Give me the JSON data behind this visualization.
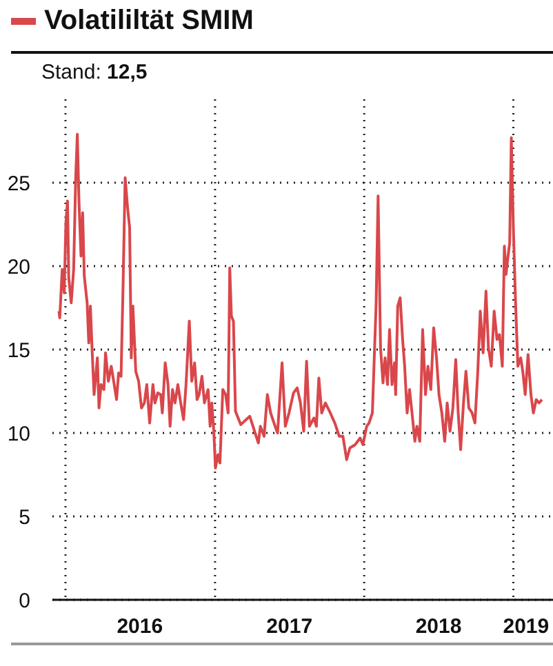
{
  "chart_data": {
    "type": "line",
    "title": "Volatililtät SMIM",
    "subtitle": "Stand: 12,5",
    "series": [
      {
        "color": "#d9474b",
        "x": [
          "2015-12-16",
          "2015-12-18",
          "2015-12-24",
          "2015-12-29",
          "2016-01-02",
          "2016-01-06",
          "2016-01-09",
          "2016-01-15",
          "2016-01-21",
          "2016-01-26",
          "2016-01-30",
          "2016-02-03",
          "2016-02-08",
          "2016-02-12",
          "2016-02-16",
          "2016-02-23",
          "2016-02-27",
          "2016-03-02",
          "2016-03-06",
          "2016-03-11",
          "2016-03-19",
          "2016-03-23",
          "2016-03-28",
          "2016-04-04",
          "2016-04-08",
          "2016-04-15",
          "2016-04-22",
          "2016-04-28",
          "2016-05-05",
          "2016-05-10",
          "2016-05-16",
          "2016-05-21",
          "2016-05-26",
          "2016-06-01",
          "2016-06-06",
          "2016-06-10",
          "2016-06-14",
          "2016-06-21",
          "2016-06-28",
          "2016-07-05",
          "2016-07-12",
          "2016-07-18",
          "2016-07-25",
          "2016-08-02",
          "2016-08-07",
          "2016-08-14",
          "2016-08-21",
          "2016-08-25",
          "2016-09-01",
          "2016-09-08",
          "2016-09-13",
          "2016-09-19",
          "2016-09-25",
          "2016-10-02",
          "2016-10-09",
          "2016-10-16",
          "2016-10-22",
          "2016-10-30",
          "2016-11-05",
          "2016-11-12",
          "2016-11-18",
          "2016-11-23",
          "2016-11-30",
          "2016-12-06",
          "2016-12-15",
          "2016-12-20",
          "2016-12-24",
          "2016-12-29",
          "2017-01-02",
          "2017-01-08",
          "2017-01-13",
          "2017-01-20",
          "2017-01-27",
          "2017-02-02",
          "2017-02-06",
          "2017-02-10",
          "2017-02-15",
          "2017-02-20",
          "2017-03-05",
          "2017-03-27",
          "2017-04-17",
          "2017-04-22",
          "2017-05-01",
          "2017-05-09",
          "2017-05-17",
          "2017-05-28",
          "2017-06-03",
          "2017-06-14",
          "2017-06-22",
          "2017-07-01",
          "2017-07-12",
          "2017-07-21",
          "2017-07-29",
          "2017-08-06",
          "2017-08-13",
          "2017-08-20",
          "2017-08-31",
          "2017-09-06",
          "2017-09-12",
          "2017-09-19",
          "2017-09-28",
          "2017-10-10",
          "2017-10-21",
          "2017-11-01",
          "2017-11-10",
          "2017-11-19",
          "2017-11-27",
          "2017-12-10",
          "2017-12-22",
          "2017-12-29",
          "2018-01-07",
          "2018-01-13",
          "2018-01-21",
          "2018-01-30",
          "2018-02-04",
          "2018-02-10",
          "2018-02-16",
          "2018-02-21",
          "2018-02-27",
          "2018-03-04",
          "2018-03-10",
          "2018-03-16",
          "2018-03-19",
          "2018-03-24",
          "2018-03-30",
          "2018-04-05",
          "2018-04-10",
          "2018-04-16",
          "2018-04-22",
          "2018-04-28",
          "2018-05-05",
          "2018-05-10",
          "2018-05-17",
          "2018-05-24",
          "2018-05-31",
          "2018-06-06",
          "2018-06-13",
          "2018-06-20",
          "2018-06-27",
          "2018-07-03",
          "2018-07-10",
          "2018-07-17",
          "2018-07-23",
          "2018-07-30",
          "2018-08-06",
          "2018-08-13",
          "2018-08-19",
          "2018-08-25",
          "2018-09-01",
          "2018-09-07",
          "2018-09-14",
          "2018-09-22",
          "2018-09-29",
          "2018-10-06",
          "2018-10-12",
          "2018-10-19",
          "2018-10-26",
          "2018-11-01",
          "2018-11-08",
          "2018-11-15",
          "2018-11-22",
          "2018-11-28",
          "2018-12-05",
          "2018-12-10",
          "2018-12-14",
          "2018-12-19",
          "2018-12-23",
          "2018-12-27",
          "2019-01-01",
          "2019-01-06",
          "2019-01-12",
          "2019-01-19",
          "2019-01-24",
          "2019-01-30",
          "2019-02-06",
          "2019-02-13",
          "2019-02-19",
          "2019-02-26",
          "2019-03-05",
          "2019-03-12"
        ],
        "values": [
          17.3,
          16.9,
          19.8,
          18.4,
          22.6,
          23.9,
          19.3,
          17.8,
          19.8,
          25.3,
          27.9,
          23.9,
          20.6,
          23.2,
          19.4,
          17.8,
          15.4,
          17.6,
          15.1,
          12.3,
          14.5,
          11.5,
          12.9,
          12.6,
          14.8,
          13.1,
          14.0,
          13.1,
          12.0,
          13.6,
          13.4,
          18.9,
          25.3,
          23.5,
          22.3,
          14.5,
          17.6,
          13.7,
          13.1,
          11.5,
          11.8,
          12.9,
          10.6,
          12.9,
          11.8,
          12.4,
          12.3,
          11.2,
          14.2,
          12.9,
          10.4,
          12.6,
          11.8,
          12.9,
          11.8,
          10.8,
          12.9,
          16.7,
          13.1,
          14.2,
          12.0,
          12.3,
          13.4,
          11.8,
          12.6,
          10.4,
          11.8,
          10.1,
          7.9,
          8.7,
          8.2,
          12.6,
          12.3,
          11.2,
          19.9,
          17.0,
          16.7,
          11.3,
          10.5,
          11.0,
          9.4,
          10.4,
          9.8,
          12.3,
          11.2,
          10.4,
          10.0,
          14.2,
          10.4,
          11.2,
          12.4,
          12.7,
          11.8,
          10.1,
          14.3,
          10.4,
          10.9,
          10.4,
          13.3,
          11.2,
          11.8,
          11.2,
          10.6,
          9.8,
          9.8,
          8.4,
          9.1,
          9.3,
          9.7,
          9.3,
          10.4,
          10.6,
          11.2,
          17.6,
          24.2,
          15.1,
          13.0,
          14.5,
          12.9,
          16.2,
          12.9,
          14.2,
          12.3,
          17.6,
          18.1,
          15.6,
          14.0,
          11.2,
          12.6,
          11.2,
          9.5,
          10.4,
          9.5,
          16.2,
          12.3,
          14.0,
          12.6,
          16.3,
          14.5,
          12.3,
          11.2,
          9.5,
          11.8,
          10.1,
          11.5,
          14.4,
          11.2,
          9.0,
          11.8,
          13.7,
          11.5,
          11.2,
          10.6,
          13.7,
          17.3,
          14.8,
          18.5,
          15.1,
          14.0,
          17.3,
          15.6,
          15.9,
          14.0,
          21.2,
          19.5,
          20.6,
          21.4,
          27.7,
          22.3,
          18.1,
          14.0,
          14.5,
          13.7,
          12.3,
          14.7,
          12.3,
          11.2,
          12.0,
          11.8,
          12.0
        ]
      }
    ],
    "xlim": [
      "2015-11-30",
      "2019-04-08"
    ],
    "xticks": [
      {
        "value": "2016-01-01",
        "label": null
      },
      {
        "value": "2016-07-01",
        "label": "2016"
      },
      {
        "value": "2017-01-01",
        "label": null
      },
      {
        "value": "2017-07-02",
        "label": "2017"
      },
      {
        "value": "2018-01-01",
        "label": null
      },
      {
        "value": "2018-07-02",
        "label": "2018"
      },
      {
        "value": "2019-01-01",
        "label": null
      },
      {
        "value": "2019-02-01",
        "label": "2019"
      }
    ],
    "ylim": [
      0,
      30
    ],
    "yticks": [
      0,
      5,
      10,
      15,
      20,
      25
    ],
    "grid": true
  }
}
